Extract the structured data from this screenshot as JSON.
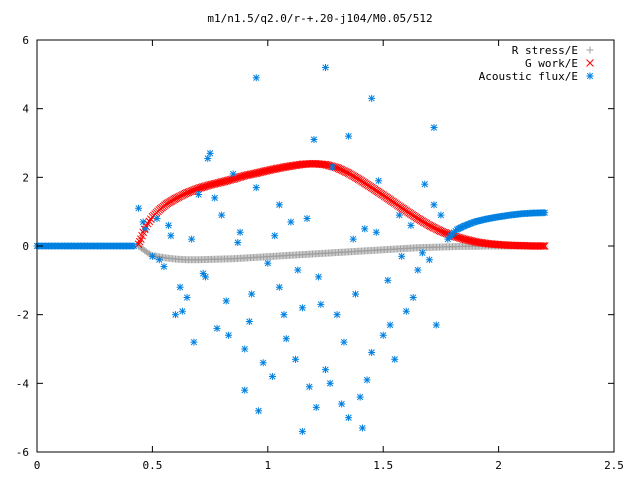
{
  "chart_data": {
    "type": "scatter",
    "title": "m1/n1.5/q2.0/r-+.20-j104/M0.05/512",
    "xlabel": "",
    "ylabel": "",
    "xlim": [
      0,
      2.5
    ],
    "ylim": [
      -6,
      6
    ],
    "x_ticks": [
      0,
      0.5,
      1,
      1.5,
      2,
      2.5
    ],
    "x_tick_labels": [
      "0",
      "0.5",
      "1",
      "1.5",
      "2",
      "2.5"
    ],
    "y_ticks": [
      -6,
      -4,
      -2,
      0,
      2,
      4,
      6
    ],
    "y_tick_labels": [
      "-6",
      "-4",
      "-2",
      "0",
      "2",
      "4",
      "6"
    ],
    "grid": false,
    "legend_position": "top-right",
    "series": [
      {
        "name": "R stress/E",
        "marker": "+",
        "color": "#a0a0a0",
        "x": [
          0.44,
          0.46,
          0.48,
          0.5,
          0.55,
          0.6,
          0.65,
          0.7,
          0.75,
          0.8,
          0.85,
          0.9,
          0.95,
          1.0,
          1.05,
          1.1,
          1.15,
          1.2,
          1.25,
          1.3,
          1.35,
          1.4,
          1.45,
          1.5,
          1.55,
          1.6,
          1.65,
          1.7,
          1.75,
          1.8,
          1.85,
          1.9,
          1.95,
          2.0,
          2.05,
          2.1,
          2.15,
          2.2
        ],
        "y": [
          0.0,
          -0.1,
          -0.2,
          -0.28,
          -0.34,
          -0.38,
          -0.4,
          -0.4,
          -0.39,
          -0.38,
          -0.37,
          -0.35,
          -0.33,
          -0.31,
          -0.29,
          -0.27,
          -0.25,
          -0.23,
          -0.21,
          -0.19,
          -0.17,
          -0.15,
          -0.13,
          -0.11,
          -0.09,
          -0.07,
          -0.05,
          -0.04,
          -0.03,
          -0.02,
          -0.01,
          -0.01,
          0.0,
          0.0,
          0.0,
          0.0,
          0.0,
          0.0
        ]
      },
      {
        "name": "G work/E",
        "marker": "x",
        "color": "#ff0000",
        "x": [
          0.44,
          0.45,
          0.46,
          0.48,
          0.5,
          0.53,
          0.56,
          0.6,
          0.65,
          0.7,
          0.75,
          0.8,
          0.85,
          0.9,
          0.95,
          1.0,
          1.05,
          1.1,
          1.15,
          1.2,
          1.25,
          1.3,
          1.35,
          1.4,
          1.45,
          1.5,
          1.55,
          1.6,
          1.65,
          1.7,
          1.75,
          1.8,
          1.85,
          1.9,
          1.95,
          2.0,
          2.05,
          2.1,
          2.15,
          2.2
        ],
        "y": [
          0.05,
          0.2,
          0.4,
          0.65,
          0.85,
          1.05,
          1.22,
          1.38,
          1.55,
          1.68,
          1.78,
          1.86,
          1.95,
          2.05,
          2.12,
          2.2,
          2.27,
          2.33,
          2.38,
          2.4,
          2.37,
          2.28,
          2.12,
          1.92,
          1.7,
          1.48,
          1.25,
          1.02,
          0.8,
          0.6,
          0.43,
          0.3,
          0.2,
          0.12,
          0.07,
          0.04,
          0.02,
          0.01,
          0.0,
          0.0
        ]
      },
      {
        "name": "Acoustic flux/E",
        "marker": "*",
        "color": "#0080e0",
        "line_x": [
          0,
          0.05,
          0.1,
          0.15,
          0.2,
          0.25,
          0.3,
          0.35,
          0.4,
          0.42
        ],
        "line_y": [
          0,
          0,
          0,
          0,
          0,
          0,
          0,
          0,
          0,
          0
        ],
        "tail_x": [
          1.78,
          1.8,
          1.82,
          1.85,
          1.88,
          1.9,
          1.95,
          2.0,
          2.05,
          2.1,
          2.15,
          2.2
        ],
        "tail_y": [
          0.2,
          0.35,
          0.48,
          0.58,
          0.66,
          0.71,
          0.79,
          0.85,
          0.9,
          0.94,
          0.96,
          0.97
        ],
        "x": [
          0.44,
          0.47,
          0.5,
          0.52,
          0.55,
          0.58,
          0.6,
          0.62,
          0.65,
          0.68,
          0.7,
          0.72,
          0.75,
          0.78,
          0.8,
          0.82,
          0.85,
          0.88,
          0.9,
          0.92,
          0.95,
          0.98,
          1.0,
          1.02,
          1.05,
          1.08,
          1.1,
          1.12,
          1.15,
          1.18,
          1.2,
          1.22,
          1.25,
          1.28,
          1.3,
          1.32,
          1.35,
          1.38,
          1.4,
          1.42,
          1.45,
          1.48,
          1.5,
          1.52,
          1.55,
          1.58,
          1.6,
          1.62,
          1.65,
          1.68,
          1.7,
          1.72,
          1.75,
          0.46,
          0.53,
          0.57,
          0.63,
          0.67,
          0.73,
          0.77,
          0.83,
          0.87,
          0.93,
          0.96,
          1.03,
          1.07,
          1.13,
          1.17,
          1.23,
          1.27,
          1.33,
          1.37,
          1.43,
          1.47,
          1.53,
          1.57,
          1.63,
          1.67,
          1.73,
          0.95,
          1.25,
          1.45,
          1.72,
          1.05,
          1.15,
          1.35,
          0.9,
          0.74,
          1.21,
          1.41
        ],
        "y": [
          1.1,
          0.5,
          -0.3,
          0.8,
          -0.6,
          0.3,
          -2.0,
          -1.2,
          -1.5,
          -2.8,
          1.5,
          -0.8,
          2.7,
          -2.4,
          0.9,
          -1.6,
          2.1,
          0.4,
          -3.0,
          -2.2,
          1.7,
          -3.4,
          -0.5,
          -3.8,
          1.2,
          -2.7,
          0.7,
          -3.3,
          -1.8,
          -4.1,
          3.1,
          -0.9,
          -3.6,
          2.3,
          -2.0,
          -4.6,
          3.2,
          -1.4,
          -4.4,
          0.5,
          -3.1,
          1.9,
          -2.6,
          -1.0,
          -3.3,
          -0.3,
          -1.9,
          0.6,
          -0.7,
          1.8,
          -0.4,
          1.2,
          0.9,
          0.7,
          -0.4,
          0.6,
          -1.9,
          0.2,
          -0.9,
          1.4,
          -2.6,
          0.1,
          -1.4,
          -4.8,
          0.3,
          -2.0,
          -0.7,
          0.8,
          -1.7,
          -4.0,
          -2.8,
          0.2,
          -3.9,
          0.4,
          -2.3,
          0.9,
          -1.5,
          -0.2,
          -2.3,
          4.9,
          5.2,
          4.3,
          3.45,
          -1.2,
          -5.4,
          -5.0,
          -4.2,
          2.55,
          -4.7,
          -5.3
        ]
      }
    ]
  }
}
